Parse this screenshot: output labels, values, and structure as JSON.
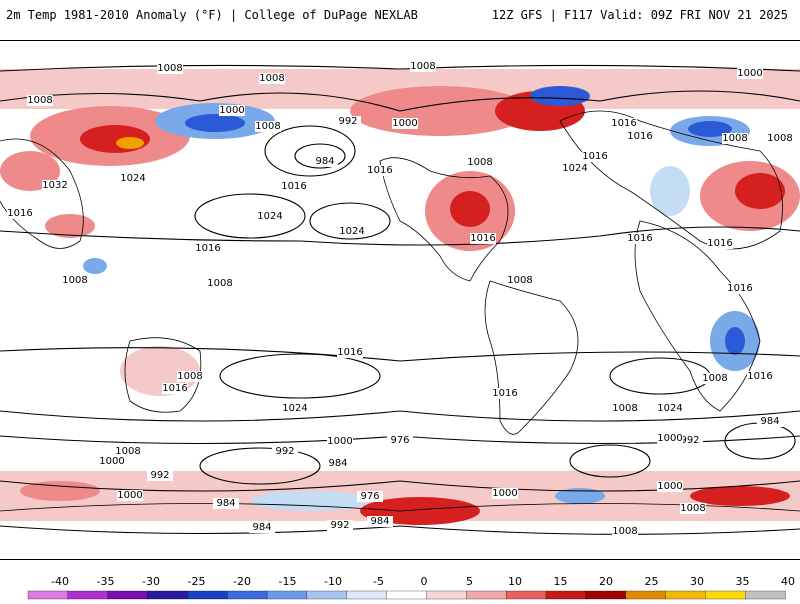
{
  "header": {
    "title": "2m Temp 1981-2010 Anomaly (°F) | College of DuPage NEXLAB",
    "run_info": "12Z GFS | F117 Valid: 09Z FRI NOV 21 2025"
  },
  "colors": {
    "warm_light": "#f6c9c9",
    "warm_mid": "#ef8a8a",
    "warm_strong": "#d61f1f",
    "warm_dark": "#a80000",
    "hot": "#f0a000",
    "cold_light": "#c5dcf5",
    "cold_mid": "#7aa9ea",
    "cold_strong": "#2a5ad6",
    "cold_dark": "#00108a",
    "coast": "#000000",
    "isobar": "#000000"
  },
  "isobar_labels": [
    "1008",
    "1008",
    "1008",
    "1008",
    "1000",
    "992",
    "984",
    "1008",
    "1000",
    "1016",
    "1024",
    "1016",
    "1024",
    "1024",
    "1016",
    "1016",
    "1032",
    "1016",
    "1024",
    "1016",
    "1016",
    "1008",
    "1008",
    "1008",
    "1016",
    "1016",
    "1008",
    "1016",
    "1024",
    "1008",
    "1016",
    "1016",
    "1000",
    "976",
    "992",
    "984",
    "1008",
    "1000",
    "992",
    "984",
    "976",
    "1000",
    "984",
    "992",
    "984",
    "1000",
    "1008",
    "1008",
    "1000",
    "992",
    "984",
    "1000",
    "1008",
    "1024",
    "1016",
    "1008",
    "1016",
    "1016",
    "1008",
    "1008",
    "1000"
  ],
  "legend": {
    "ticks": [
      "-40",
      "-35",
      "-30",
      "-25",
      "-20",
      "-15",
      "-10",
      "-5",
      "0",
      "5",
      "10",
      "15",
      "20",
      "25",
      "30",
      "35",
      "40"
    ],
    "colors": [
      "#e07ae0",
      "#b030d0",
      "#7a10b0",
      "#2a1aa0",
      "#1a40c8",
      "#3a6ce0",
      "#6d9ae8",
      "#a6c4f0",
      "#dce8f8",
      "#ffffff",
      "#f8d6d6",
      "#f0a8a8",
      "#e86060",
      "#c81818",
      "#a00000",
      "#e08a00",
      "#f5b800",
      "#ffd800",
      "#c0c0c0"
    ]
  }
}
